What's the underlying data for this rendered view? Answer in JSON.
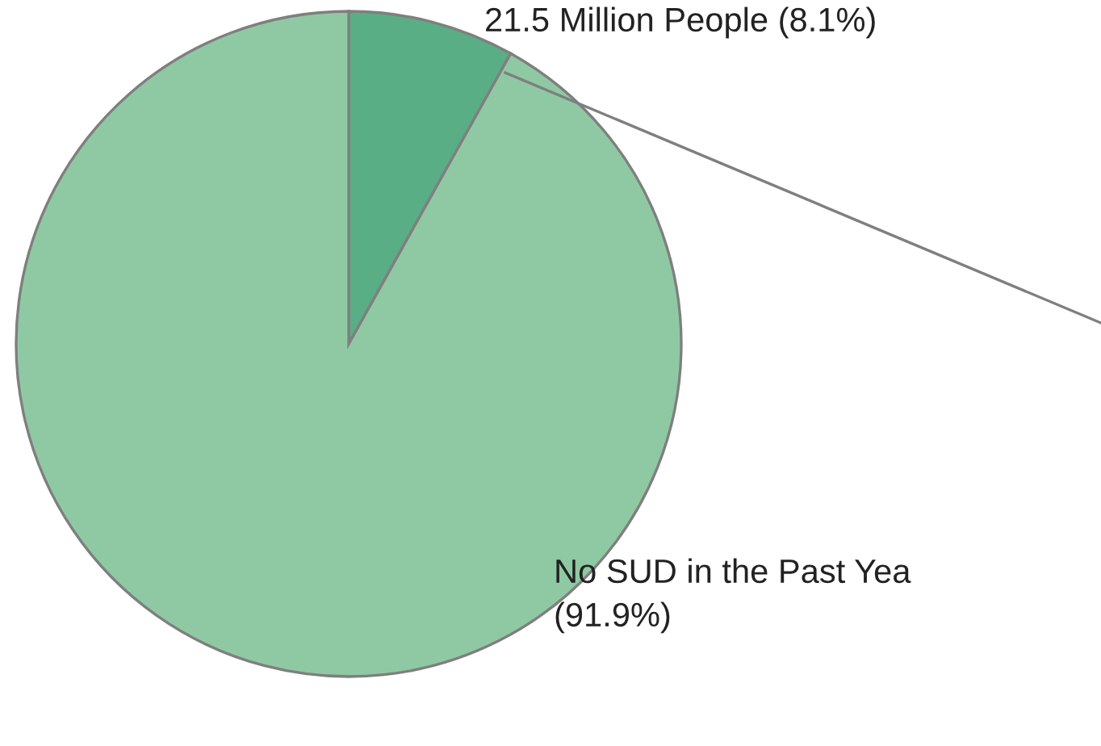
{
  "chart_data": {
    "type": "pie",
    "categories": [
      "21.5 Million People (8.1%)",
      "No SUD in the Past Yea\n(91.9%)"
    ],
    "values": [
      8.1,
      91.9
    ],
    "colors": [
      "#5aae85",
      "#8fc9a3"
    ],
    "legend": false
  }
}
